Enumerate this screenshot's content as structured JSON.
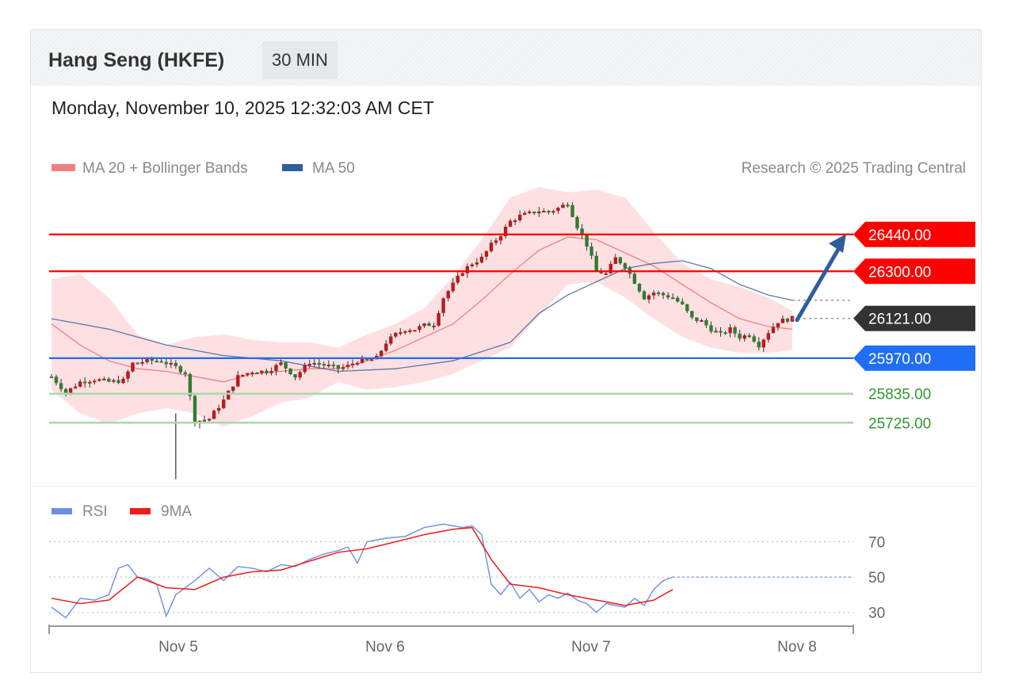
{
  "header": {
    "title": "Hang Seng (HKFE)",
    "timeframe": "30 MIN",
    "datetime": "Monday, November 10, 2025 12:32:03 AM CET"
  },
  "legend": {
    "ma20": "MA 20 + Bollinger Bands",
    "ma50": "MA 50",
    "credit": "Research © 2025 Trading Central"
  },
  "colors": {
    "ma20": "#f08080",
    "ma50": "#2f5d9e",
    "band": "#ffd6d8",
    "up": "#b71c1c",
    "down": "#2e7d32",
    "resistance": "#ff0000",
    "pivot": "#1f6ef5",
    "support": "#2e9a2e",
    "last": "#333333",
    "rsi": "#6b8fe0",
    "rsi9ma": "#ee1c1c"
  },
  "levels": [
    {
      "name": "resistance-2",
      "label": "26440.00",
      "value": 26440,
      "kind": "resistance"
    },
    {
      "name": "resistance-1",
      "label": "26300.00",
      "value": 26300,
      "kind": "resistance"
    },
    {
      "name": "last-price",
      "label": "26121.00",
      "value": 26121,
      "kind": "last"
    },
    {
      "name": "pivot",
      "label": "25970.00",
      "value": 25970,
      "kind": "pivot"
    },
    {
      "name": "support-1",
      "label": "25835.00",
      "value": 25835,
      "kind": "support"
    },
    {
      "name": "support-2",
      "label": "25725.00",
      "value": 25725,
      "kind": "support"
    }
  ],
  "rsi": {
    "legend_rsi": "RSI",
    "legend_ma": "9MA",
    "ticks": [
      "70",
      "50",
      "30"
    ]
  },
  "chart_data": {
    "type": "candlestick",
    "xaxis_labels": [
      "Nov 5",
      "Nov 6",
      "Nov 7",
      "Nov 8"
    ],
    "price_ylim": [
      25500,
      26650
    ],
    "rsi_ylim": [
      20,
      85
    ],
    "close_path": [
      [
        0,
        25900
      ],
      [
        3,
        25840
      ],
      [
        6,
        25880
      ],
      [
        9,
        25890
      ],
      [
        12,
        25880
      ],
      [
        15,
        25885
      ],
      [
        17,
        25950
      ],
      [
        20,
        25960
      ],
      [
        23,
        25960
      ],
      [
        26,
        25935
      ],
      [
        28,
        25915
      ],
      [
        30,
        25730
      ],
      [
        33,
        25740
      ],
      [
        36,
        25810
      ],
      [
        39,
        25900
      ],
      [
        42,
        25920
      ],
      [
        45,
        25920
      ],
      [
        48,
        25950
      ],
      [
        51,
        25900
      ],
      [
        54,
        25955
      ],
      [
        57,
        25945
      ],
      [
        60,
        25930
      ],
      [
        62,
        25940
      ],
      [
        64,
        25960
      ],
      [
        66,
        25960
      ],
      [
        68,
        25970
      ],
      [
        70,
        26030
      ],
      [
        72,
        26060
      ],
      [
        74,
        26080
      ],
      [
        76,
        26080
      ],
      [
        78,
        26095
      ],
      [
        80,
        26100
      ],
      [
        82,
        26200
      ],
      [
        84,
        26250
      ],
      [
        86,
        26300
      ],
      [
        88,
        26330
      ],
      [
        90,
        26350
      ],
      [
        92,
        26400
      ],
      [
        94,
        26440
      ],
      [
        96,
        26490
      ],
      [
        98,
        26510
      ],
      [
        100,
        26520
      ],
      [
        102,
        26530
      ],
      [
        104,
        26525
      ],
      [
        106,
        26540
      ],
      [
        108,
        26560
      ],
      [
        110,
        26470
      ],
      [
        112,
        26400
      ],
      [
        114,
        26300
      ],
      [
        116,
        26290
      ],
      [
        118,
        26350
      ],
      [
        120,
        26320
      ],
      [
        122,
        26260
      ],
      [
        124,
        26200
      ],
      [
        126,
        26220
      ],
      [
        128,
        26210
      ],
      [
        130,
        26200
      ],
      [
        132,
        26170
      ],
      [
        134,
        26120
      ],
      [
        136,
        26110
      ],
      [
        138,
        26080
      ],
      [
        140,
        26060
      ],
      [
        142,
        26080
      ],
      [
        144,
        26050
      ],
      [
        146,
        26060
      ],
      [
        148,
        26020
      ],
      [
        150,
        26070
      ],
      [
        152,
        26110
      ],
      [
        155,
        26121
      ]
    ],
    "ma20_path": [
      [
        0,
        26100
      ],
      [
        6,
        26020
      ],
      [
        12,
        25960
      ],
      [
        18,
        25930
      ],
      [
        24,
        25920
      ],
      [
        30,
        25900
      ],
      [
        36,
        25880
      ],
      [
        42,
        25910
      ],
      [
        48,
        25920
      ],
      [
        54,
        25930
      ],
      [
        60,
        25930
      ],
      [
        66,
        25960
      ],
      [
        72,
        26000
      ],
      [
        78,
        26050
      ],
      [
        84,
        26100
      ],
      [
        90,
        26190
      ],
      [
        96,
        26290
      ],
      [
        102,
        26380
      ],
      [
        108,
        26430
      ],
      [
        114,
        26420
      ],
      [
        120,
        26370
      ],
      [
        126,
        26320
      ],
      [
        132,
        26250
      ],
      [
        138,
        26180
      ],
      [
        144,
        26120
      ],
      [
        150,
        26090
      ],
      [
        155,
        26080
      ]
    ],
    "ma50_path": [
      [
        0,
        26120
      ],
      [
        12,
        26080
      ],
      [
        24,
        26020
      ],
      [
        36,
        25980
      ],
      [
        48,
        25960
      ],
      [
        60,
        25920
      ],
      [
        72,
        25930
      ],
      [
        84,
        25960
      ],
      [
        96,
        26030
      ],
      [
        102,
        26140
      ],
      [
        108,
        26210
      ],
      [
        114,
        26260
      ],
      [
        120,
        26310
      ],
      [
        126,
        26330
      ],
      [
        132,
        26340
      ],
      [
        138,
        26310
      ],
      [
        144,
        26250
      ],
      [
        150,
        26210
      ],
      [
        155,
        26190
      ]
    ],
    "bb_upper": [
      [
        0,
        26270
      ],
      [
        6,
        26290
      ],
      [
        12,
        26200
      ],
      [
        18,
        26060
      ],
      [
        24,
        26020
      ],
      [
        30,
        26050
      ],
      [
        36,
        26060
      ],
      [
        42,
        26040
      ],
      [
        48,
        26030
      ],
      [
        54,
        26030
      ],
      [
        60,
        26010
      ],
      [
        66,
        26060
      ],
      [
        72,
        26100
      ],
      [
        78,
        26160
      ],
      [
        84,
        26280
      ],
      [
        90,
        26420
      ],
      [
        96,
        26580
      ],
      [
        102,
        26620
      ],
      [
        108,
        26600
      ],
      [
        114,
        26610
      ],
      [
        120,
        26580
      ],
      [
        126,
        26450
      ],
      [
        132,
        26330
      ],
      [
        138,
        26270
      ],
      [
        144,
        26240
      ],
      [
        150,
        26200
      ],
      [
        155,
        26150
      ]
    ],
    "bb_lower": [
      [
        0,
        25850
      ],
      [
        6,
        25760
      ],
      [
        12,
        25720
      ],
      [
        18,
        25760
      ],
      [
        24,
        25780
      ],
      [
        30,
        25760
      ],
      [
        36,
        25710
      ],
      [
        42,
        25750
      ],
      [
        48,
        25800
      ],
      [
        54,
        25820
      ],
      [
        60,
        25880
      ],
      [
        66,
        25850
      ],
      [
        72,
        25860
      ],
      [
        78,
        25880
      ],
      [
        84,
        25910
      ],
      [
        90,
        25960
      ],
      [
        96,
        26010
      ],
      [
        102,
        26130
      ],
      [
        108,
        26250
      ],
      [
        114,
        26260
      ],
      [
        120,
        26200
      ],
      [
        126,
        26120
      ],
      [
        132,
        26050
      ],
      [
        138,
        26010
      ],
      [
        144,
        25990
      ],
      [
        150,
        25990
      ],
      [
        155,
        26000
      ]
    ],
    "rsi_series": [
      [
        0,
        33
      ],
      [
        3,
        27
      ],
      [
        6,
        38
      ],
      [
        9,
        37
      ],
      [
        12,
        40
      ],
      [
        14,
        55
      ],
      [
        16,
        57
      ],
      [
        18,
        50
      ],
      [
        20,
        49
      ],
      [
        22,
        46
      ],
      [
        24,
        28
      ],
      [
        26,
        40
      ],
      [
        28,
        44
      ],
      [
        30,
        48
      ],
      [
        33,
        55
      ],
      [
        36,
        48
      ],
      [
        39,
        56
      ],
      [
        42,
        55
      ],
      [
        45,
        53
      ],
      [
        48,
        57
      ],
      [
        51,
        56
      ],
      [
        54,
        60
      ],
      [
        57,
        63
      ],
      [
        60,
        65
      ],
      [
        62,
        67
      ],
      [
        64,
        58
      ],
      [
        66,
        70
      ],
      [
        70,
        72
      ],
      [
        74,
        73
      ],
      [
        78,
        78
      ],
      [
        82,
        80
      ],
      [
        86,
        78
      ],
      [
        88,
        79
      ],
      [
        90,
        74
      ],
      [
        92,
        46
      ],
      [
        94,
        40
      ],
      [
        96,
        47
      ],
      [
        98,
        38
      ],
      [
        100,
        43
      ],
      [
        102,
        36
      ],
      [
        104,
        40
      ],
      [
        106,
        38
      ],
      [
        108,
        41
      ],
      [
        110,
        37
      ],
      [
        112,
        35
      ],
      [
        114,
        30
      ],
      [
        116,
        35
      ],
      [
        118,
        34
      ],
      [
        120,
        33
      ],
      [
        122,
        38
      ],
      [
        124,
        34
      ],
      [
        126,
        43
      ],
      [
        128,
        48
      ],
      [
        130,
        50
      ]
    ],
    "rsi_9ma": [
      [
        0,
        38
      ],
      [
        6,
        35
      ],
      [
        12,
        37
      ],
      [
        18,
        50
      ],
      [
        24,
        44
      ],
      [
        30,
        43
      ],
      [
        36,
        50
      ],
      [
        42,
        53
      ],
      [
        48,
        54
      ],
      [
        54,
        59
      ],
      [
        60,
        64
      ],
      [
        66,
        66
      ],
      [
        72,
        70
      ],
      [
        78,
        74
      ],
      [
        84,
        77
      ],
      [
        88,
        78
      ],
      [
        92,
        60
      ],
      [
        96,
        46
      ],
      [
        102,
        44
      ],
      [
        108,
        40
      ],
      [
        114,
        37
      ],
      [
        120,
        34
      ],
      [
        126,
        37
      ],
      [
        130,
        43
      ]
    ]
  }
}
